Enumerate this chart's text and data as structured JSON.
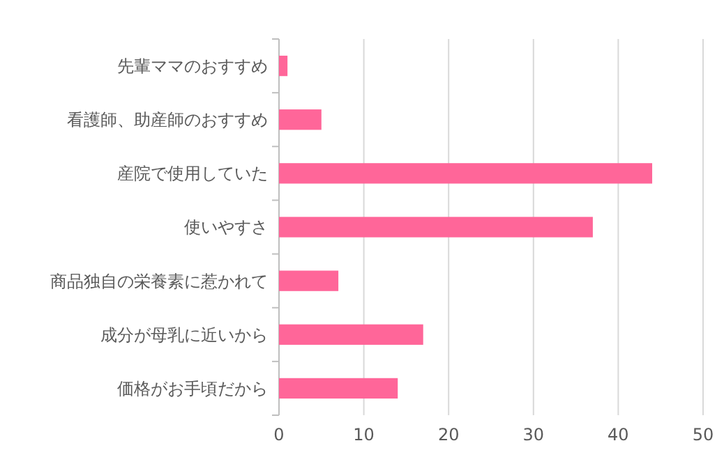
{
  "chart_data": {
    "type": "bar",
    "orientation": "horizontal",
    "categories": [
      "先輩ママのおすすめ",
      "看護師、助産師のおすすめ",
      "産院で使用していた",
      "使いやすさ",
      "商品独自の栄養素に惹かれて",
      "成分が母乳に近いから",
      "価格がお手頃だから"
    ],
    "values": [
      1,
      5,
      44,
      37,
      7,
      17,
      14
    ],
    "color": "#ff6699",
    "xlim": [
      0,
      50
    ],
    "xticks": [
      0,
      10,
      20,
      30,
      40,
      50
    ],
    "grid": "x"
  }
}
